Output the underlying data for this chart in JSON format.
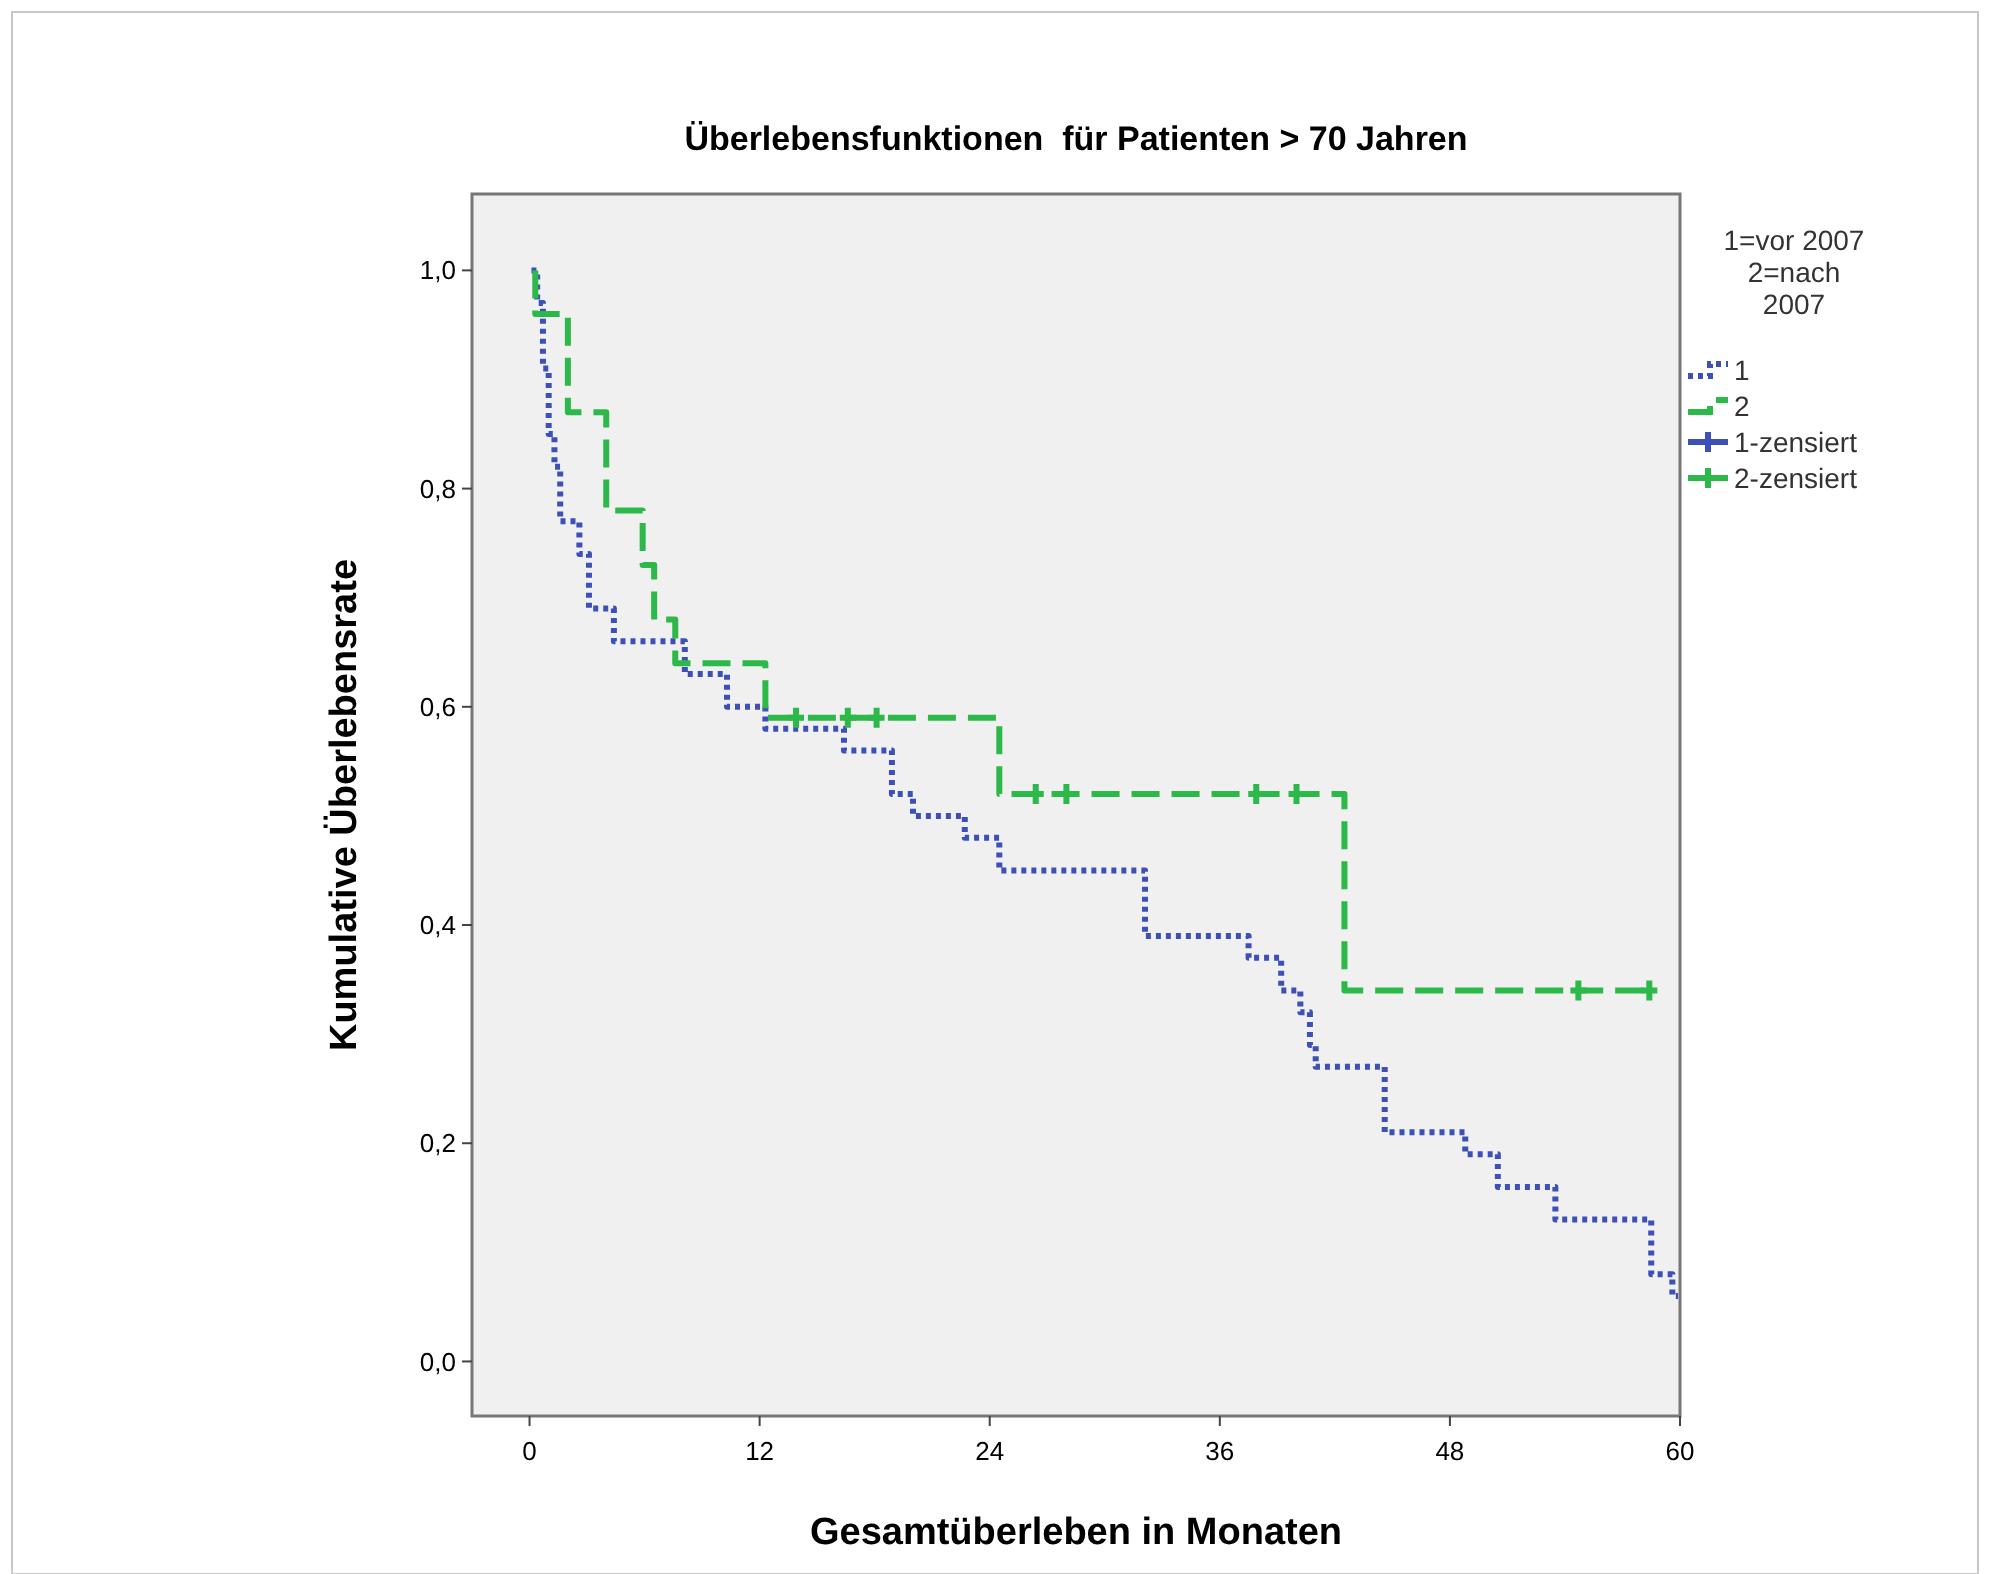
{
  "chart_data": {
    "type": "step",
    "title": "Überlebensfunktionen  für Patienten > 70 Jahren",
    "xlabel": "Gesamtüberleben in Monaten",
    "ylabel": "Kumulative Überlebensrate",
    "legend_title": "1=vor 2007\n2=nach\n2007",
    "legend": "top right",
    "grid": false,
    "xlim": [
      -3,
      60
    ],
    "xticks": [
      0,
      12,
      24,
      36,
      48,
      60
    ],
    "ylim": [
      -0.05,
      1.07
    ],
    "yticks": [
      {
        "value": 0,
        "label": "0,0"
      },
      {
        "value": 0.2,
        "label": "0,2"
      },
      {
        "value": 0.4,
        "label": "0,4"
      },
      {
        "value": 0.6,
        "label": "0,6"
      },
      {
        "value": 0.8,
        "label": "0,8"
      },
      {
        "value": 1,
        "label": "1,0"
      }
    ],
    "series": [
      {
        "name": "1",
        "color": "#3d50b8",
        "line_style": "dotted",
        "x": [
          0.1,
          0.4,
          0.7,
          1.0,
          1.3,
          1.6,
          2.6,
          3.1,
          4.4,
          8.1,
          10.3,
          12.3,
          16.4,
          18.9,
          20.0,
          22.7,
          24.5,
          32.1,
          37.5,
          39.2,
          40.2,
          40.7,
          41.0,
          44.6,
          48.8,
          50.5,
          53.5,
          58.5,
          59.6,
          59.9
        ],
        "values": [
          1.0,
          0.97,
          0.91,
          0.85,
          0.82,
          0.77,
          0.74,
          0.69,
          0.66,
          0.63,
          0.6,
          0.58,
          0.56,
          0.52,
          0.5,
          0.48,
          0.45,
          0.39,
          0.37,
          0.34,
          0.32,
          0.29,
          0.27,
          0.21,
          0.19,
          0.16,
          0.13,
          0.08,
          0.06,
          0.06
        ]
      },
      {
        "name": "2",
        "color": "#2db84a",
        "line_style": "dashed",
        "x": [
          0.3,
          0.3,
          2.0,
          4.0,
          5.9,
          6.5,
          7.6,
          12.3,
          24.5,
          42.5,
          58.4
        ],
        "values": [
          1.0,
          0.96,
          0.87,
          0.78,
          0.73,
          0.68,
          0.64,
          0.59,
          0.52,
          0.34,
          0.34
        ]
      },
      {
        "name": "1-zensiert",
        "type": "scatter",
        "marker": "cross",
        "color": "#3d50b8"
      },
      {
        "name": "2-zensiert",
        "type": "scatter",
        "marker": "cross",
        "color": "#2db84a",
        "x": [
          13.9,
          16.6,
          18.1,
          26.4,
          28.0,
          37.9,
          40.0,
          54.7,
          58.4
        ],
        "values": [
          0.59,
          0.59,
          0.59,
          0.52,
          0.52,
          0.52,
          0.52,
          0.34,
          0.34
        ]
      }
    ]
  }
}
